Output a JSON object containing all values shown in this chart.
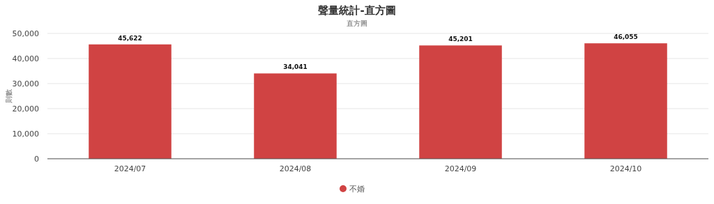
{
  "chart_data": {
    "type": "bar",
    "title": "聲量統計-直方圖",
    "subtitle": "直方圖",
    "ylabel": "則數",
    "categories": [
      "2024/07",
      "2024/08",
      "2024/09",
      "2024/10"
    ],
    "series": [
      {
        "name": "不婚",
        "color": "#d04343",
        "values": [
          45622,
          34041,
          45201,
          46055
        ],
        "value_labels": [
          "45,622",
          "34,041",
          "45,201",
          "46,055"
        ]
      }
    ],
    "ylim": [
      0,
      50000
    ],
    "yticks": [
      {
        "value": 0,
        "label": "0"
      },
      {
        "value": 10000,
        "label": "10,000"
      },
      {
        "value": 20000,
        "label": "20,000"
      },
      {
        "value": 30000,
        "label": "30,000"
      },
      {
        "value": 40000,
        "label": "40,000"
      },
      {
        "value": 50000,
        "label": "50,000"
      }
    ],
    "grid": true,
    "legend": "bottom"
  }
}
